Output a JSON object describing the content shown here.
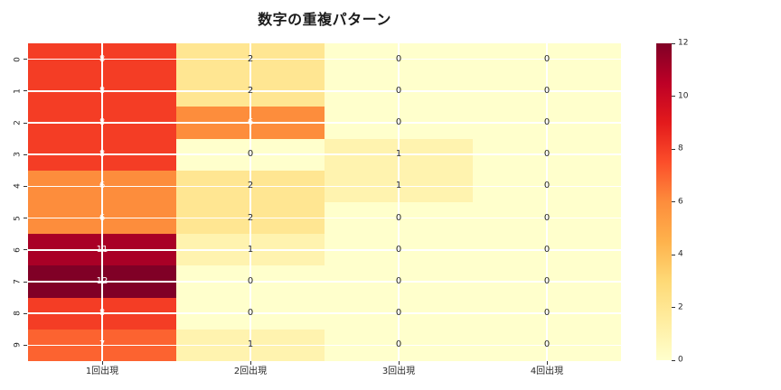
{
  "title": "数字の重複パターン",
  "chart_data": {
    "type": "heatmap",
    "title": "数字の重複パターン",
    "columns": [
      "1回出現",
      "2回出現",
      "3回出現",
      "4回出現"
    ],
    "rows": [
      "0",
      "1",
      "2",
      "3",
      "4",
      "5",
      "6",
      "7",
      "8",
      "9"
    ],
    "values": [
      [
        8,
        2,
        0,
        0
      ],
      [
        8,
        2,
        0,
        0
      ],
      [
        8,
        6,
        0,
        0
      ],
      [
        8,
        0,
        1,
        0
      ],
      [
        6,
        2,
        1,
        0
      ],
      [
        6,
        2,
        0,
        0
      ],
      [
        11,
        1,
        0,
        0
      ],
      [
        12,
        0,
        0,
        0
      ],
      [
        8,
        0,
        0,
        0
      ],
      [
        7,
        1,
        0,
        0
      ]
    ],
    "vmin": 0,
    "vmax": 12,
    "colorbar_ticks": [
      0,
      2,
      4,
      6,
      8,
      10,
      12
    ],
    "colormap": {
      "name": "YlOrRd",
      "stops": [
        "#ffffcc",
        "#ffeda0",
        "#fed976",
        "#feb24c",
        "#fd8d3c",
        "#fc4e2a",
        "#e31a1c",
        "#bd0026",
        "#800026"
      ]
    },
    "grid_color": "#ffffff",
    "annotation_dark_color": "#262626",
    "annotation_light_color": "#ffffff",
    "legend_position": "right",
    "grid": true
  }
}
